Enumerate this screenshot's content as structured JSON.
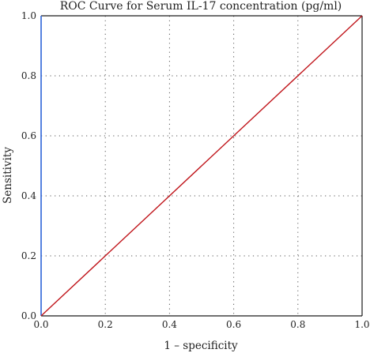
{
  "chart_data": {
    "type": "line",
    "title": "ROC Curve for Serum IL-17 concentration (pg/ml)",
    "xlabel": "1 – specificity",
    "ylabel": "Sensitivity",
    "xlim": [
      0,
      1
    ],
    "ylim": [
      0,
      1
    ],
    "grid": true,
    "x_ticks": [
      "0.0",
      "0.2",
      "0.4",
      "0.6",
      "0.8",
      "1.0"
    ],
    "y_ticks": [
      "0.0",
      "0.2",
      "0.4",
      "0.6",
      "0.8",
      "1.0"
    ],
    "series": [
      {
        "x": [
          0.0,
          1.0
        ],
        "y": [
          0.0,
          1.0
        ],
        "color": "#c0151b"
      }
    ],
    "colors": {
      "left_axis": "#2b63d9",
      "frame": "#1a1a1a",
      "grid": "#555555"
    }
  }
}
